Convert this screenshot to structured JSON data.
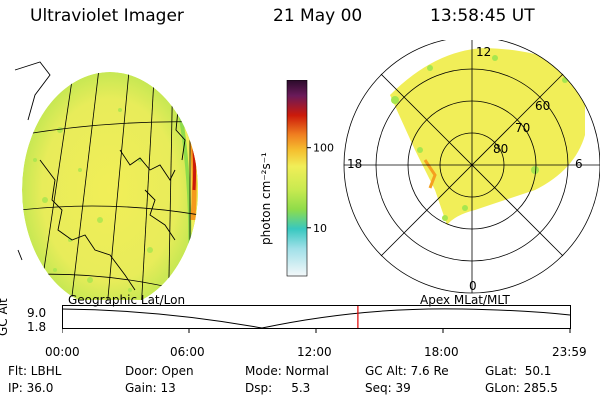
{
  "header": {
    "instrument": "Ultraviolet Imager",
    "date": "21 May 00",
    "time": "13:58:45 UT"
  },
  "colorbar": {
    "unit_label": "photon cm⁻²s⁻¹",
    "ticks": [
      {
        "value": 10,
        "label": "10"
      },
      {
        "value": 100,
        "label": "100"
      }
    ],
    "range": [
      2.5,
      700
    ],
    "scale": "log"
  },
  "polar_plot": {
    "mlt_labels": [
      "12",
      "18",
      "0",
      "6"
    ],
    "lat_labels": [
      "60",
      "70",
      "80"
    ]
  },
  "timeline": {
    "ylabel": "GC Alt",
    "yticks": [
      "9.0",
      "1.8"
    ],
    "left_title": "Geographic Lat/Lon",
    "right_title": "Apex MLat/MLT",
    "xticks": [
      "00:00",
      "06:00",
      "12:00",
      "18:00",
      "23:59"
    ],
    "current_time_hours": 13.979
  },
  "status": {
    "row1": [
      {
        "key": "flt",
        "text": "Flt: LBHL"
      },
      {
        "key": "door",
        "text": "Door: Open"
      },
      {
        "key": "mode",
        "text": "Mode: Normal"
      },
      {
        "key": "gcalt",
        "text": "GC Alt: 7.6 Re"
      },
      {
        "key": "glat",
        "text": "GLat:  50.1"
      }
    ],
    "row2": [
      {
        "key": "ip",
        "text": "IP: 36.0"
      },
      {
        "key": "gain",
        "text": "Gain: 13"
      },
      {
        "key": "dsp",
        "text": "Dsp:     5.3"
      },
      {
        "key": "seq",
        "text": "Seq: 39"
      },
      {
        "key": "glon",
        "text": "GLon: 285.5"
      }
    ]
  },
  "colors": {
    "background": "#ffffff",
    "glow_yellow": "#f1ee58",
    "glow_green": "#a6e64e",
    "auroral_red": "#cc1a0a",
    "marker_red": "#e00000"
  }
}
